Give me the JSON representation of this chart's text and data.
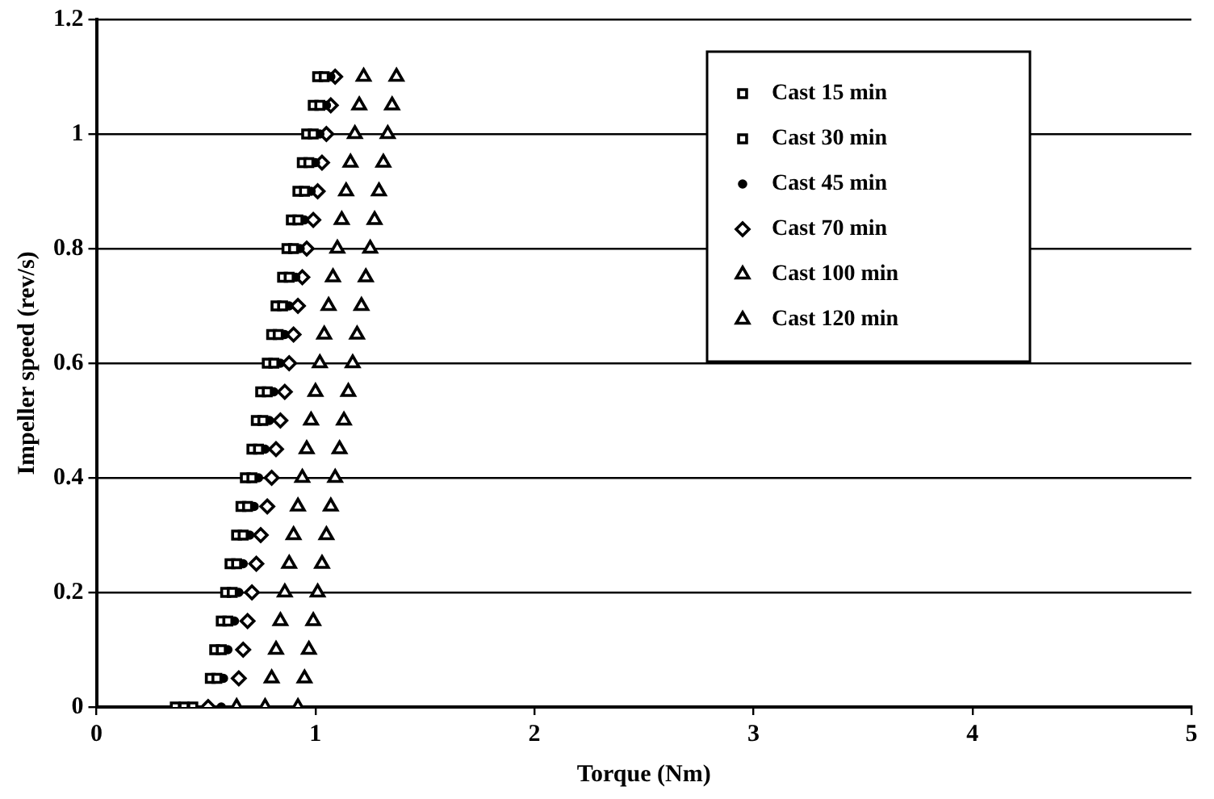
{
  "chart_data": {
    "type": "scatter",
    "xlabel": "Torque (Nm)",
    "ylabel": "Impeller speed (rev/s)",
    "xlim": [
      0,
      5
    ],
    "xticks": [
      0,
      1,
      2,
      3,
      4,
      5
    ],
    "ylim": [
      0,
      1.2
    ],
    "yticks": [
      0,
      0.2,
      0.4,
      0.6,
      0.8,
      1,
      1.2
    ],
    "grid": "y",
    "legend": "top right",
    "series": [
      {
        "name": "Cast 15 min",
        "color": "#000000",
        "marker": "square",
        "x": [
          0.4,
          0.55,
          0.57,
          0.6,
          0.62,
          0.64,
          0.67,
          0.69,
          0.71,
          0.74,
          0.76,
          0.78,
          0.81,
          0.83,
          0.85,
          0.88,
          0.9,
          0.92,
          0.95,
          0.97,
          0.99,
          1.02,
          1.04
        ],
        "values": [
          0,
          0.05,
          0.1,
          0.15,
          0.2,
          0.25,
          0.3,
          0.35,
          0.4,
          0.45,
          0.5,
          0.55,
          0.6,
          0.65,
          0.7,
          0.75,
          0.8,
          0.85,
          0.9,
          0.95,
          1,
          1.05,
          1.1
        ]
      },
      {
        "name": "Cast 30 min",
        "color": "#000000",
        "marker": "square",
        "x": [
          0.36,
          0.44,
          0.52,
          0.54,
          0.57,
          0.59,
          0.61,
          0.64,
          0.66,
          0.68,
          0.71,
          0.73,
          0.75,
          0.78,
          0.8,
          0.82,
          0.85,
          0.87,
          0.89,
          0.92,
          0.94,
          0.96,
          0.99,
          1.01
        ],
        "values": [
          0,
          0,
          0.05,
          0.1,
          0.15,
          0.2,
          0.25,
          0.3,
          0.35,
          0.4,
          0.45,
          0.5,
          0.55,
          0.6,
          0.65,
          0.7,
          0.75,
          0.8,
          0.85,
          0.9,
          0.95,
          1,
          1.05,
          1.1
        ]
      },
      {
        "name": "Cast 45 min",
        "color": "#000000",
        "marker": "circle",
        "x": [
          0.57,
          0.58,
          0.6,
          0.63,
          0.65,
          0.67,
          0.7,
          0.72,
          0.74,
          0.77,
          0.79,
          0.81,
          0.84,
          0.86,
          0.88,
          0.91,
          0.93,
          0.95,
          0.98,
          1.0,
          1.02,
          1.05,
          1.07
        ],
        "values": [
          0,
          0.05,
          0.1,
          0.15,
          0.2,
          0.25,
          0.3,
          0.35,
          0.4,
          0.45,
          0.5,
          0.55,
          0.6,
          0.65,
          0.7,
          0.75,
          0.8,
          0.85,
          0.9,
          0.95,
          1,
          1.05,
          1.1
        ]
      },
      {
        "name": "Cast 70 min",
        "color": "#000000",
        "marker": "diamond",
        "x": [
          0.51,
          0.65,
          0.67,
          0.69,
          0.71,
          0.73,
          0.75,
          0.78,
          0.8,
          0.82,
          0.84,
          0.86,
          0.88,
          0.9,
          0.92,
          0.94,
          0.96,
          0.99,
          1.01,
          1.03,
          1.05,
          1.07,
          1.09
        ],
        "values": [
          0,
          0.05,
          0.1,
          0.15,
          0.2,
          0.25,
          0.3,
          0.35,
          0.4,
          0.45,
          0.5,
          0.55,
          0.6,
          0.65,
          0.7,
          0.75,
          0.8,
          0.85,
          0.9,
          0.95,
          1,
          1.05,
          1.1
        ]
      },
      {
        "name": "Cast 100 min",
        "color": "#000000",
        "marker": "triangle",
        "x": [
          0.64,
          0.8,
          0.82,
          0.84,
          0.86,
          0.88,
          0.9,
          0.92,
          0.94,
          0.96,
          0.98,
          1.0,
          1.02,
          1.04,
          1.06,
          1.08,
          1.1,
          1.12,
          1.14,
          1.16,
          1.18,
          1.2,
          1.22
        ],
        "values": [
          0,
          0.05,
          0.1,
          0.15,
          0.2,
          0.25,
          0.3,
          0.35,
          0.4,
          0.45,
          0.5,
          0.55,
          0.6,
          0.65,
          0.7,
          0.75,
          0.8,
          0.85,
          0.9,
          0.95,
          1,
          1.05,
          1.1
        ]
      },
      {
        "name": "Cast 120 min",
        "color": "#000000",
        "marker": "triangle",
        "x": [
          0.77,
          0.92,
          0.95,
          0.97,
          0.99,
          1.01,
          1.03,
          1.05,
          1.07,
          1.09,
          1.11,
          1.13,
          1.15,
          1.17,
          1.19,
          1.21,
          1.23,
          1.25,
          1.27,
          1.29,
          1.31,
          1.33,
          1.35,
          1.37
        ],
        "values": [
          0,
          0,
          0.05,
          0.1,
          0.15,
          0.2,
          0.25,
          0.3,
          0.35,
          0.4,
          0.45,
          0.5,
          0.55,
          0.6,
          0.65,
          0.7,
          0.75,
          0.8,
          0.85,
          0.9,
          0.95,
          1,
          1.05,
          1.1
        ]
      }
    ]
  }
}
